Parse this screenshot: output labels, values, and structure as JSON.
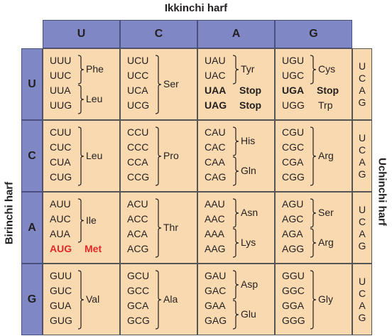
{
  "top_label": "Ikkinchi harf",
  "left_label": "Birinchi harf",
  "right_label": "Uchinchi harf",
  "bases": [
    "U",
    "C",
    "A",
    "G"
  ],
  "third_letters": [
    "U",
    "C",
    "A",
    "G"
  ],
  "table": [
    [
      {
        "codons": [
          "UUU",
          "UUC",
          "UUA",
          "UUG"
        ],
        "groups": [
          {
            "aa": "Phe",
            "span": 2
          },
          {
            "aa": "Leu",
            "span": 2
          }
        ]
      },
      {
        "codons": [
          "UCU",
          "UCC",
          "UCA",
          "UCG"
        ],
        "groups": [
          {
            "aa": "Ser",
            "span": 4
          }
        ]
      },
      {
        "codons": [
          "UAU",
          "UAC",
          "UAA",
          "UAG"
        ],
        "groups": [
          {
            "aa": "Tyr",
            "span": 2
          },
          {
            "aa": "Stop",
            "span": 1,
            "style": "bold"
          },
          {
            "aa": "Stop",
            "span": 1,
            "style": "bold"
          }
        ]
      },
      {
        "codons": [
          "UGU",
          "UGC",
          "UGA",
          "UGG"
        ],
        "groups": [
          {
            "aa": "Cys",
            "span": 2
          },
          {
            "aa": "Stop",
            "span": 1,
            "style": "bold"
          },
          {
            "aa": "Trp",
            "span": 1
          }
        ]
      }
    ],
    [
      {
        "codons": [
          "CUU",
          "CUC",
          "CUA",
          "CUG"
        ],
        "groups": [
          {
            "aa": "Leu",
            "span": 4
          }
        ]
      },
      {
        "codons": [
          "CCU",
          "CCC",
          "CCA",
          "CCG"
        ],
        "groups": [
          {
            "aa": "Pro",
            "span": 4
          }
        ]
      },
      {
        "codons": [
          "CAU",
          "CAC",
          "CAA",
          "CAG"
        ],
        "groups": [
          {
            "aa": "His",
            "span": 2
          },
          {
            "aa": "Gln",
            "span": 2
          }
        ]
      },
      {
        "codons": [
          "CGU",
          "CGC",
          "CGA",
          "CGG"
        ],
        "groups": [
          {
            "aa": "Arg",
            "span": 4
          }
        ]
      }
    ],
    [
      {
        "codons": [
          "AUU",
          "AUC",
          "AUA",
          "AUG"
        ],
        "groups": [
          {
            "aa": "Ile",
            "span": 3
          },
          {
            "aa": "Met",
            "span": 1,
            "style": "red"
          }
        ]
      },
      {
        "codons": [
          "ACU",
          "ACC",
          "ACA",
          "ACG"
        ],
        "groups": [
          {
            "aa": "Thr",
            "span": 4
          }
        ]
      },
      {
        "codons": [
          "AAU",
          "AAC",
          "AAA",
          "AAG"
        ],
        "groups": [
          {
            "aa": "Asn",
            "span": 2
          },
          {
            "aa": "Lys",
            "span": 2
          }
        ]
      },
      {
        "codons": [
          "AGU",
          "AGC",
          "AGA",
          "AGG"
        ],
        "groups": [
          {
            "aa": "Ser",
            "span": 2
          },
          {
            "aa": "Arg",
            "span": 2
          }
        ]
      }
    ],
    [
      {
        "codons": [
          "GUU",
          "GUC",
          "GUA",
          "GUG"
        ],
        "groups": [
          {
            "aa": "Val",
            "span": 4
          }
        ]
      },
      {
        "codons": [
          "GCU",
          "GCC",
          "GCA",
          "GCG"
        ],
        "groups": [
          {
            "aa": "Ala",
            "span": 4
          }
        ]
      },
      {
        "codons": [
          "GAU",
          "GAC",
          "GAA",
          "GAG"
        ],
        "groups": [
          {
            "aa": "Asp",
            "span": 2
          },
          {
            "aa": "Glu",
            "span": 2
          }
        ]
      },
      {
        "codons": [
          "GGU",
          "GGC",
          "GGA",
          "GGG"
        ],
        "groups": [
          {
            "aa": "Gly",
            "span": 4
          }
        ]
      }
    ]
  ],
  "colors": {
    "header": "#7f87c4",
    "cell": "#f9d9b0",
    "highlight": "#e0282a"
  }
}
